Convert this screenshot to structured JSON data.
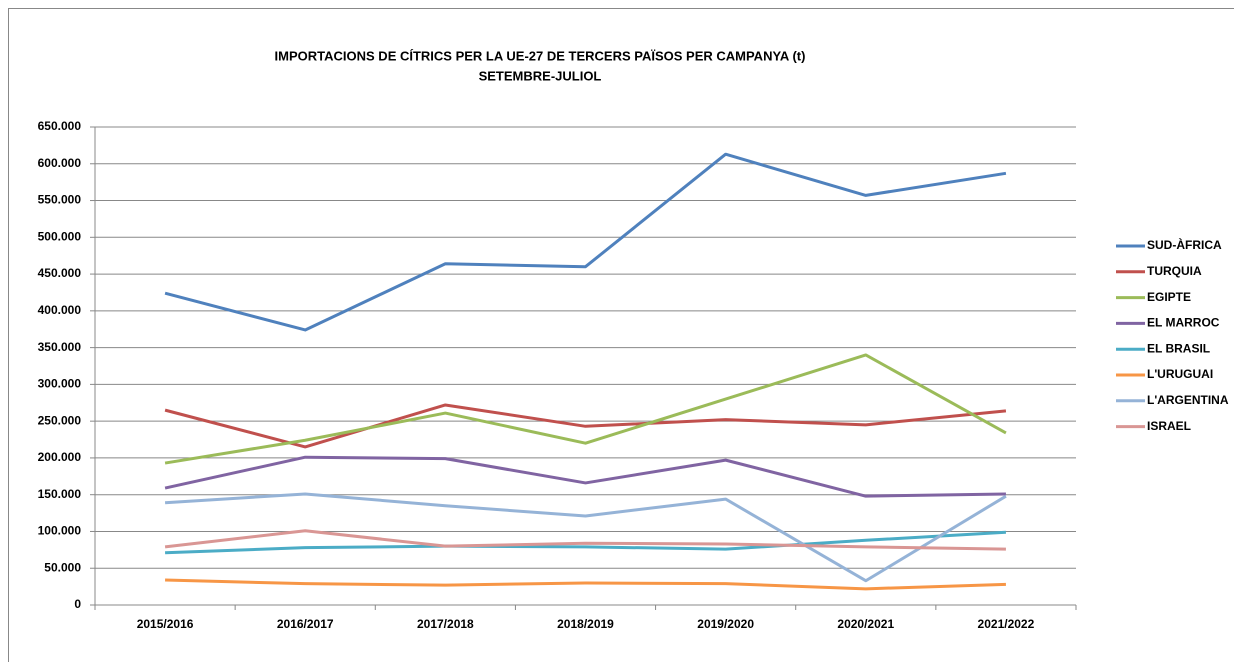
{
  "chart_data": {
    "type": "line",
    "title": "IMPORTACIONS DE CÍTRICS PER LA UE-27 DE TERCERS PAÏSOS PER CAMPANYA  (t)",
    "subtitle": "SETEMBRE-JULIOL",
    "categories": [
      "2015/2016",
      "2016/2017",
      "2017/2018",
      "2018/2019",
      "2019/2020",
      "2020/2021",
      "2021/2022"
    ],
    "series": [
      {
        "name": "SUD-ÀFRICA",
        "color": "#4f81bd",
        "values": [
          424000,
          374000,
          464000,
          460000,
          613000,
          557000,
          587000
        ]
      },
      {
        "name": "TURQUIA",
        "color": "#c0504d",
        "values": [
          265000,
          215000,
          272000,
          243000,
          252000,
          245000,
          264000
        ]
      },
      {
        "name": "EGIPTE",
        "color": "#9bbb59",
        "values": [
          193000,
          224000,
          261000,
          220000,
          280000,
          340000,
          234000
        ]
      },
      {
        "name": "EL MARROC",
        "color": "#8064a2",
        "values": [
          159000,
          201000,
          199000,
          166000,
          197000,
          148000,
          151000
        ]
      },
      {
        "name": "EL BRASIL",
        "color": "#4bacc6",
        "values": [
          71000,
          78000,
          80000,
          79000,
          76000,
          88000,
          99000
        ]
      },
      {
        "name": "L'URUGUAI",
        "color": "#f79646",
        "values": [
          34000,
          29000,
          27000,
          30000,
          29000,
          22000,
          28000
        ]
      },
      {
        "name": "L'ARGENTINA",
        "color": "#95b3d7",
        "values": [
          139000,
          151000,
          135000,
          121000,
          144000,
          33000,
          148000
        ]
      },
      {
        "name": "ISRAEL",
        "color": "#d99694",
        "values": [
          79000,
          101000,
          80000,
          84000,
          83000,
          79000,
          76000
        ]
      }
    ],
    "ylim": [
      0,
      650000
    ],
    "yticks": [
      0,
      {
        "value": 50000,
        "label": "50.000"
      },
      {
        "value": 100000,
        "label": "100.000"
      },
      {
        "value": 150000,
        "label": "150.000"
      },
      {
        "value": 200000,
        "label": "200.000"
      },
      {
        "value": 250000,
        "label": "250.000"
      },
      {
        "value": 300000,
        "label": "300.000"
      },
      {
        "value": 350000,
        "label": "350.000"
      },
      {
        "value": 400000,
        "label": "400.000"
      },
      {
        "value": 450000,
        "label": "450.000"
      },
      {
        "value": 500000,
        "label": "500.000"
      },
      {
        "value": 550000,
        "label": "550.000"
      },
      {
        "value": 600000,
        "label": "600.000"
      },
      {
        "value": 650000,
        "label": "650.000"
      }
    ],
    "grid": true,
    "legend": "right"
  }
}
